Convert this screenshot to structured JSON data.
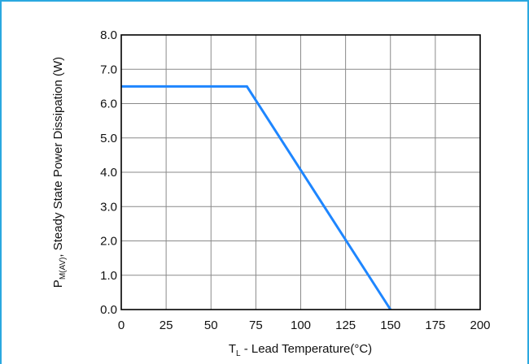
{
  "chart_data": {
    "type": "line",
    "x_ticks": [
      "0",
      "25",
      "50",
      "75",
      "100",
      "125",
      "150",
      "175",
      "200"
    ],
    "y_ticks": [
      "0.0",
      "1.0",
      "2.0",
      "3.0",
      "4.0",
      "5.0",
      "6.0",
      "7.0",
      "8.0"
    ],
    "xlim": [
      0,
      200
    ],
    "ylim": [
      0,
      8
    ],
    "grid": true,
    "series": [
      {
        "color": "#1e86ff",
        "points": [
          [
            0,
            6.5
          ],
          [
            70,
            6.5
          ],
          [
            150,
            0
          ]
        ]
      }
    ],
    "xlabel": {
      "main": "T",
      "sub": "L",
      "rest": " - Lead Temperature(°C)"
    },
    "ylabel": {
      "main": "P",
      "sub": "M(AV)",
      "rest": ", Steady State Power Dissipation (W)"
    }
  },
  "colors": {
    "frame": "#2aa8e0",
    "grid": "#8a8a8a",
    "axes": "#000000",
    "series": "#1e86ff"
  }
}
